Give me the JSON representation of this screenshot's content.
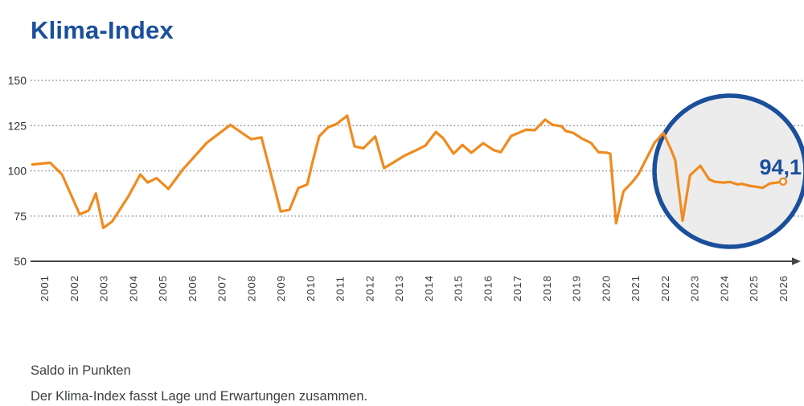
{
  "title": "Klima-Index",
  "footer": {
    "line1": "Saldo in Punkten",
    "line2": "Der Klima-Index fasst Lage und Erwartungen zusammen."
  },
  "colors": {
    "accent_blue": "#1b4f9c",
    "line_orange": "#f18a1e",
    "grid": "#8f8f8f",
    "axis": "#454545",
    "highlight_fill": "#ececec",
    "marker_fill": "#fbfbfb"
  },
  "chart_data": {
    "type": "line",
    "title": "Klima-Index",
    "xlabel": "",
    "ylabel": "Saldo in Punkten",
    "ylim": [
      50,
      155
    ],
    "y_ticks": [
      50,
      75,
      100,
      125,
      150
    ],
    "grid": "dotted horizontal gridlines at 75/100/125/150",
    "legend_position": "none",
    "x_axis_arrow": true,
    "x_tick_labels": [
      "2001",
      "2002",
      "2003",
      "2004",
      "2005",
      "2006",
      "2007",
      "2008",
      "2009",
      "2010",
      "2011",
      "2012",
      "2013",
      "2014",
      "2015",
      "2016",
      "2017",
      "2018",
      "2019",
      "2020",
      "2021",
      "2022",
      "2023",
      "2024",
      "2025",
      "2026"
    ],
    "series": [
      {
        "name": "Klima-Index (Saldo in Punkten)",
        "points": [
          [
            2000.6,
            103.5
          ],
          [
            2001.2,
            104.5
          ],
          [
            2001.6,
            98
          ],
          [
            2002.2,
            76
          ],
          [
            2002.5,
            78
          ],
          [
            2002.75,
            87.5
          ],
          [
            2003.0,
            68.5
          ],
          [
            2003.3,
            72
          ],
          [
            2003.85,
            86
          ],
          [
            2004.25,
            98
          ],
          [
            2004.5,
            93.5
          ],
          [
            2004.8,
            96
          ],
          [
            2005.2,
            90
          ],
          [
            2005.7,
            101
          ],
          [
            2006.5,
            115.5
          ],
          [
            2007.3,
            125.4
          ],
          [
            2007.6,
            122
          ],
          [
            2008.0,
            117.5
          ],
          [
            2008.35,
            118.5
          ],
          [
            2009.0,
            77.5
          ],
          [
            2009.3,
            78.5
          ],
          [
            2009.6,
            90.5
          ],
          [
            2009.9,
            92.5
          ],
          [
            2010.05,
            103
          ],
          [
            2010.3,
            119
          ],
          [
            2010.6,
            124
          ],
          [
            2010.9,
            126
          ],
          [
            2011.25,
            130.5
          ],
          [
            2011.5,
            113.5
          ],
          [
            2011.8,
            112.5
          ],
          [
            2012.2,
            119
          ],
          [
            2012.5,
            101.5
          ],
          [
            2012.8,
            104.5
          ],
          [
            2013.2,
            108.5
          ],
          [
            2013.6,
            111.5
          ],
          [
            2013.9,
            114
          ],
          [
            2014.25,
            121.5
          ],
          [
            2014.5,
            118
          ],
          [
            2014.85,
            109.5
          ],
          [
            2015.15,
            114.3
          ],
          [
            2015.45,
            110
          ],
          [
            2015.85,
            115.3
          ],
          [
            2016.2,
            111.5
          ],
          [
            2016.45,
            110.3
          ],
          [
            2016.8,
            119.3
          ],
          [
            2017.05,
            121
          ],
          [
            2017.3,
            122.7
          ],
          [
            2017.6,
            122.5
          ],
          [
            2017.95,
            128.3
          ],
          [
            2018.2,
            125.4
          ],
          [
            2018.5,
            124.7
          ],
          [
            2018.65,
            122
          ],
          [
            2018.9,
            121
          ],
          [
            2019.2,
            117.8
          ],
          [
            2019.5,
            115.4
          ],
          [
            2019.75,
            110.3
          ],
          [
            2020.05,
            110
          ],
          [
            2020.15,
            109.5
          ],
          [
            2020.35,
            71
          ],
          [
            2020.6,
            88.7
          ],
          [
            2020.9,
            93.8
          ],
          [
            2021.1,
            98
          ],
          [
            2021.4,
            107.5
          ],
          [
            2021.65,
            115.5
          ],
          [
            2021.95,
            121
          ],
          [
            2022.2,
            112
          ],
          [
            2022.35,
            106
          ],
          [
            2022.6,
            72.5
          ],
          [
            2022.85,
            97.5
          ],
          [
            2023.2,
            102.8
          ],
          [
            2023.5,
            95.2
          ],
          [
            2023.7,
            93.9
          ],
          [
            2024.0,
            93.5
          ],
          [
            2024.2,
            93.9
          ],
          [
            2024.45,
            92.5
          ],
          [
            2024.6,
            92.8
          ],
          [
            2024.9,
            91.6
          ],
          [
            2025.1,
            91.2
          ],
          [
            2025.3,
            90.6
          ],
          [
            2025.55,
            93
          ],
          [
            2025.8,
            93.5
          ],
          [
            2026.0,
            94.1
          ]
        ]
      }
    ],
    "annotation": {
      "end_label": "94,1",
      "end_value": 94.1,
      "highlight_circle": true,
      "highlight_years_covered": "≈2022–2026"
    }
  }
}
